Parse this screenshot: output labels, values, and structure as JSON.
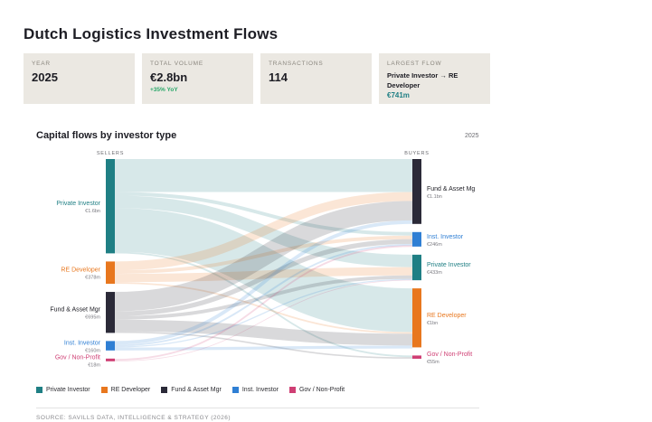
{
  "title": "Dutch Logistics Investment Flows",
  "kpis": [
    {
      "label": "YEAR",
      "value": "2025"
    },
    {
      "label": "TOTAL VOLUME",
      "value": "€2.8bn",
      "note": "+35% YoY"
    },
    {
      "label": "TRANSACTIONS",
      "value": "114"
    },
    {
      "label": "LARGEST FLOW",
      "text": "Private Investor → RE Developer",
      "accent": "€741m"
    }
  ],
  "section_title": "Capital flows by investor type",
  "year_tag": "2025",
  "colors": {
    "Private Investor": "#1f7f84",
    "RE Developer": "#e8771e",
    "Fund & Asset Mgr": "#2b2a38",
    "Inst. Investor": "#2f7fd4",
    "Gov / Non-Profit": "#cf3f74"
  },
  "chart_data": {
    "type": "sankey",
    "left_label": "SELLERS",
    "right_label": "BUYERS",
    "sellers": [
      {
        "name": "Private Investor",
        "value_label": "€1.6bn",
        "value": 1600
      },
      {
        "name": "RE Developer",
        "value_label": "€378m",
        "value": 378
      },
      {
        "name": "Fund & Asset Mgr",
        "value_label": "€695m",
        "value": 695
      },
      {
        "name": "Inst. Investor",
        "value_label": "€160m",
        "value": 160
      },
      {
        "name": "Gov / Non-Profit",
        "value_label": "€18m",
        "value": 18
      }
    ],
    "buyers": [
      {
        "name": "Fund & Asset Mg",
        "value_label": "€1.1bn",
        "value": 1100
      },
      {
        "name": "Inst. Investor",
        "value_label": "€246m",
        "value": 246
      },
      {
        "name": "Private Investor",
        "value_label": "€433m",
        "value": 433
      },
      {
        "name": "RE Developer",
        "value_label": "€1bn",
        "value": 1000
      },
      {
        "name": "Gov / Non-Profit",
        "value_label": "€55m",
        "value": 55
      }
    ],
    "flows": [
      {
        "from": "Private Investor",
        "to": "Fund & Asset Mg",
        "value": 560
      },
      {
        "from": "Private Investor",
        "to": "Inst. Investor",
        "value": 60
      },
      {
        "from": "Private Investor",
        "to": "Private Investor",
        "value": 210
      },
      {
        "from": "Private Investor",
        "to": "RE Developer",
        "value": 741
      },
      {
        "from": "Private Investor",
        "to": "Gov / Non-Profit",
        "value": 29
      },
      {
        "from": "RE Developer",
        "to": "Fund & Asset Mg",
        "value": 150
      },
      {
        "from": "RE Developer",
        "to": "Inst. Investor",
        "value": 60
      },
      {
        "from": "RE Developer",
        "to": "Private Investor",
        "value": 140
      },
      {
        "from": "RE Developer",
        "to": "RE Developer",
        "value": 28
      },
      {
        "from": "Fund & Asset Mgr",
        "to": "Fund & Asset Mg",
        "value": 330
      },
      {
        "from": "Fund & Asset Mgr",
        "to": "Inst. Investor",
        "value": 80
      },
      {
        "from": "Fund & Asset Mgr",
        "to": "Private Investor",
        "value": 60
      },
      {
        "from": "Fund & Asset Mgr",
        "to": "RE Developer",
        "value": 200
      },
      {
        "from": "Fund & Asset Mgr",
        "to": "Gov / Non-Profit",
        "value": 25
      },
      {
        "from": "Inst. Investor",
        "to": "Fund & Asset Mg",
        "value": 60
      },
      {
        "from": "Inst. Investor",
        "to": "Inst. Investor",
        "value": 30
      },
      {
        "from": "Inst. Investor",
        "to": "Private Investor",
        "value": 20
      },
      {
        "from": "Inst. Investor",
        "to": "RE Developer",
        "value": 50
      },
      {
        "from": "Gov / Non-Profit",
        "to": "Inst. Investor",
        "value": 16
      },
      {
        "from": "Gov / Non-Profit",
        "to": "Private Investor",
        "value": 2
      }
    ]
  },
  "legend": [
    "Private Investor",
    "RE Developer",
    "Fund & Asset Mgr",
    "Inst. Investor",
    "Gov / Non-Profit"
  ],
  "source": "SOURCE: SAVILLS DATA, INTELLIGENCE & STRATEGY (2026)"
}
